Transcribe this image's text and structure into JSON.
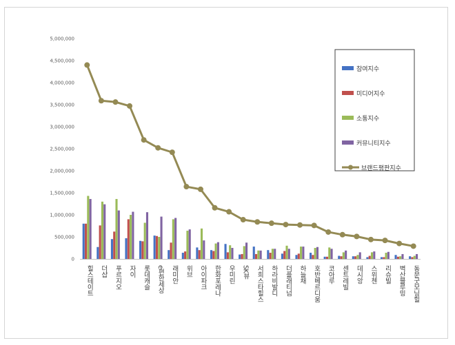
{
  "chart_data": {
    "type": "bar",
    "title": "",
    "xlabel": "",
    "ylabel": "",
    "ylim": [
      0,
      5000000
    ],
    "yticks": [
      "0",
      "500,000",
      "1,000,000",
      "1,500,000",
      "2,000,000",
      "2,500,000",
      "3,000,000",
      "3,500,000",
      "4,000,000",
      "4,500,000",
      "5,000,000"
    ],
    "grid": false,
    "legend_position": "right",
    "categories": [
      "힐스테이트",
      "더샵",
      "푸르지오",
      "자이",
      "롯데캐슬",
      "e편한세상",
      "래미안",
      "위브",
      "아이파크",
      "한화포레나",
      "우미린",
      "SK뷰",
      "서희스타힐스",
      "하라비발디",
      "더플래티넘",
      "하늘채",
      "호반베르디움",
      "코아루",
      "센트레빌",
      "데시앙",
      "스위첸",
      "리슈빌",
      "벽산블루밍",
      "동문굿모닝힐"
    ],
    "series": [
      {
        "name": "참여지수",
        "type": "bar",
        "color": "#4472c4",
        "values": [
          800000,
          270000,
          450000,
          470000,
          410000,
          530000,
          200000,
          140000,
          260000,
          200000,
          340000,
          100000,
          280000,
          200000,
          120000,
          90000,
          140000,
          50000,
          70000,
          60000,
          40000,
          40000,
          90000,
          60000
        ]
      },
      {
        "name": "미디어지수",
        "type": "bar",
        "color": "#c0504d",
        "values": [
          800000,
          760000,
          620000,
          900000,
          400000,
          520000,
          370000,
          170000,
          200000,
          180000,
          150000,
          110000,
          110000,
          140000,
          180000,
          120000,
          90000,
          50000,
          60000,
          60000,
          70000,
          40000,
          50000,
          40000
        ]
      },
      {
        "name": "소통지수",
        "type": "bar",
        "color": "#9bbb59",
        "values": [
          1430000,
          1300000,
          1360000,
          1000000,
          820000,
          500000,
          900000,
          640000,
          690000,
          350000,
          310000,
          290000,
          190000,
          230000,
          300000,
          280000,
          250000,
          260000,
          150000,
          90000,
          150000,
          140000,
          60000,
          70000
        ]
      },
      {
        "name": "커뮤니티지수",
        "type": "bar",
        "color": "#8064a2",
        "values": [
          1360000,
          1240000,
          1100000,
          1070000,
          1060000,
          960000,
          930000,
          670000,
          420000,
          380000,
          250000,
          370000,
          190000,
          230000,
          230000,
          280000,
          270000,
          230000,
          190000,
          150000,
          170000,
          160000,
          110000,
          110000
        ]
      },
      {
        "name": "브랜드평판지수",
        "type": "line",
        "color": "#948a54",
        "values": [
          4400000,
          3590000,
          3560000,
          3470000,
          2700000,
          2520000,
          2420000,
          1640000,
          1580000,
          1160000,
          1070000,
          890000,
          840000,
          810000,
          780000,
          770000,
          760000,
          610000,
          550000,
          510000,
          440000,
          420000,
          350000,
          290000
        ]
      }
    ]
  }
}
